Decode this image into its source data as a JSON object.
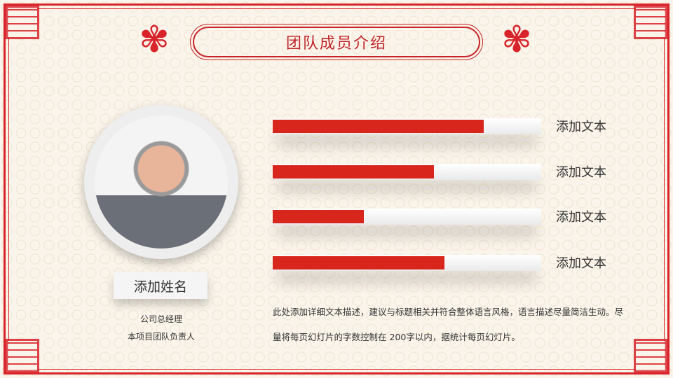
{
  "title": "团队成员介绍",
  "member": {
    "name": "添加姓名",
    "role1": "公司总经理",
    "role2": "本项目团队负责人"
  },
  "skills": [
    {
      "label": "添加文本",
      "percent": 78.6
    },
    {
      "label": "添加文本",
      "percent": 60
    },
    {
      "label": "添加文本",
      "percent": 34
    },
    {
      "label": "添加文本",
      "percent": 64
    }
  ],
  "description": "此处添加详细文本描述，建议与标题相关并符合整体语言风格，语言描述尽量简洁生动。尽量将每页幻灯片的字数控制在  200字以内，据统计每页幻灯片。",
  "colors": {
    "accent": "#d8261d",
    "border": "#d8232a",
    "background": "#faf4ea"
  }
}
